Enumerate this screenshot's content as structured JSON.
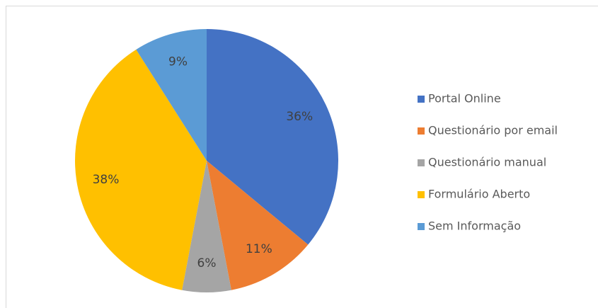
{
  "chart_data": {
    "type": "pie",
    "categories": [
      "Portal Online",
      "Questionário por email",
      "Questionário manual",
      "Formulário Aberto",
      "Sem Informação"
    ],
    "values": [
      36,
      11,
      6,
      38,
      9
    ],
    "value_labels": [
      "36%",
      "11%",
      "6%",
      "38%",
      "9%"
    ],
    "colors": [
      "#4472c4",
      "#ed7d31",
      "#a5a5a5",
      "#ffc000",
      "#5b9bd5"
    ],
    "legend": "right"
  }
}
